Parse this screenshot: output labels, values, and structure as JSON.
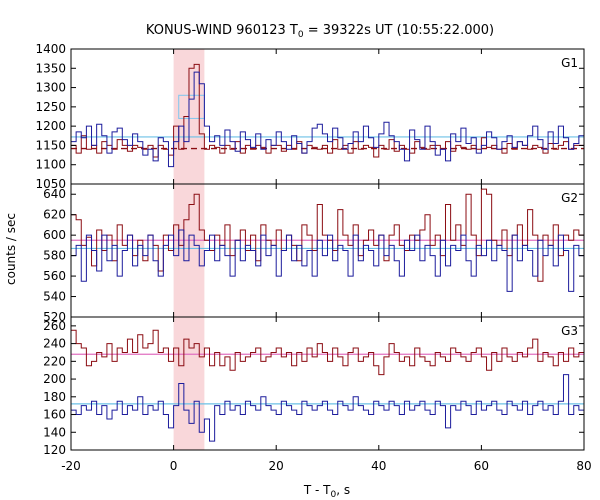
{
  "chart_data": {
    "type": "line",
    "title": {
      "prefix": "KONUS-WIND 960123 T",
      "sub": "0",
      "suffix": " = 39322s UT (10:55:22.000)"
    },
    "xlabel": {
      "prefix": "T - T",
      "sub": "0",
      "suffix": ", s"
    },
    "ylabel": "counts / sec",
    "xlim": [
      -20,
      80
    ],
    "xticks": [
      "-20",
      "0",
      "20",
      "40",
      "60",
      "80"
    ],
    "highlight": {
      "x0": 0,
      "x1": 6,
      "color": "#f9d7da"
    },
    "colors": {
      "red": "#8b0c12",
      "blue": "#1c1c9c",
      "cyan_fit": "#6cc0e6",
      "pink_fit": "#e070c0",
      "dash_fit": "#8b0c12"
    },
    "panels": [
      {
        "label": "G1",
        "ylim": [
          1050,
          1400
        ],
        "yticks": [
          "1400",
          "1350",
          "1300",
          "1250",
          "1200",
          "1150",
          "1100",
          "1050"
        ],
        "x_start": -20,
        "bin_width": 1,
        "series": [
          {
            "color": "red",
            "values": [
              1150,
              1130,
              1175,
              1140,
              1150,
              1130,
              1160,
              1150,
              1140,
              1165,
              1150,
              1135,
              1150,
              1145,
              1140,
              1150,
              1120,
              1150,
              1140,
              1125,
              1200,
              1140,
              1225,
              1350,
              1360,
              1180,
              1140,
              1150,
              1145,
              1130,
              1150,
              1140,
              1160,
              1130,
              1150,
              1140,
              1150,
              1145,
              1130,
              1150,
              1150,
              1135,
              1150,
              1140,
              1160,
              1130,
              1150,
              1145,
              1140,
              1150,
              1130,
              1165,
              1140,
              1150,
              1130,
              1160,
              1140,
              1150,
              1145,
              1120,
              1150,
              1140,
              1165,
              1135,
              1150,
              1140,
              1130,
              1160,
              1145,
              1140,
              1150,
              1150,
              1140,
              1160,
              1135,
              1150,
              1145,
              1140,
              1150,
              1140,
              1170,
              1145,
              1150,
              1140,
              1130,
              1155,
              1140,
              1160,
              1150,
              1140,
              1150,
              1145,
              1130,
              1155,
              1140,
              1150,
              1160,
              1140,
              1150,
              1150
            ]
          },
          {
            "color": "blue",
            "values": [
              1160,
              1185,
              1170,
              1200,
              1150,
              1205,
              1175,
              1130,
              1185,
              1195,
              1165,
              1150,
              1180,
              1160,
              1125,
              1140,
              1110,
              1170,
              1160,
              1095,
              1160,
              1200,
              1160,
              1270,
              1340,
              1310,
              1200,
              1160,
              1175,
              1150,
              1190,
              1160,
              1135,
              1185,
              1165,
              1145,
              1180,
              1140,
              1165,
              1150,
              1185,
              1160,
              1140,
              1175,
              1155,
              1130,
              1160,
              1195,
              1205,
              1180,
              1160,
              1195,
              1170,
              1140,
              1155,
              1185,
              1160,
              1200,
              1170,
              1145,
              1180,
              1210,
              1175,
              1160,
              1140,
              1110,
              1190,
              1165,
              1140,
              1200,
              1160,
              1125,
              1140,
              1110,
              1180,
              1160,
              1195,
              1155,
              1170,
              1130,
              1150,
              1185,
              1170,
              1140,
              1160,
              1175,
              1145,
              1160,
              1150,
              1175,
              1200,
              1165,
              1140,
              1185,
              1155,
              1200,
              1170,
              1140,
              1155,
              1175
            ]
          }
        ],
        "fits": [
          {
            "color": "cyan_fit",
            "y": 1172,
            "dashed": false
          },
          {
            "color": "dash_fit",
            "y": 1142,
            "dashed": true
          }
        ],
        "box": {
          "x0": 1,
          "x1": 6,
          "y0": 1220,
          "y1": 1280,
          "color": "#7fc6ee"
        }
      },
      {
        "label": "G2",
        "ylim": [
          520,
          650
        ],
        "yticks": [
          "640",
          "620",
          "600",
          "580",
          "560",
          "540",
          "520"
        ],
        "x_start": -20,
        "bin_width": 1,
        "series": [
          {
            "color": "red",
            "values": [
              620,
              615,
              590,
              598,
              570,
              605,
              585,
              600,
              575,
              610,
              590,
              600,
              580,
              595,
              575,
              600,
              590,
              565,
              600,
              585,
              610,
              590,
              615,
              630,
              640,
              605,
              595,
              585,
              600,
              590,
              610,
              580,
              595,
              605,
              585,
              600,
              575,
              610,
              595,
              590,
              605,
              585,
              600,
              590,
              575,
              610,
              600,
              585,
              630,
              600,
              595,
              585,
              625,
              600,
              590,
              610,
              580,
              595,
              605,
              590,
              600,
              575,
              600,
              610,
              590,
              585,
              600,
              595,
              605,
              620,
              590,
              600,
              580,
              630,
              595,
              610,
              590,
              640,
              600,
              580,
              645,
              640,
              595,
              590,
              605,
              580,
              600,
              610,
              590,
              625,
              600,
              555,
              600,
              590,
              610,
              580,
              600,
              595,
              605,
              600
            ]
          },
          {
            "color": "blue",
            "values": [
              580,
              590,
              555,
              600,
              585,
              565,
              600,
              575,
              590,
              560,
              585,
              600,
              570,
              590,
              580,
              600,
              575,
              560,
              590,
              600,
              580,
              605,
              575,
              600,
              590,
              570,
              585,
              600,
              575,
              590,
              580,
              560,
              595,
              575,
              590,
              585,
              570,
              600,
              580,
              590,
              560,
              585,
              600,
              575,
              590,
              570,
              585,
              560,
              595,
              580,
              600,
              575,
              590,
              585,
              560,
              600,
              575,
              590,
              585,
              570,
              600,
              580,
              590,
              575,
              560,
              595,
              585,
              600,
              575,
              590,
              580,
              560,
              595,
              570,
              590,
              585,
              600,
              575,
              560,
              590,
              580,
              595,
              575,
              590,
              585,
              545,
              600,
              575,
              590,
              585,
              560,
              595,
              580,
              590,
              570,
              600,
              585,
              545,
              590,
              580
            ]
          }
        ],
        "fits": [
          {
            "color": "cyan_fit",
            "y": 587,
            "dashed": false
          },
          {
            "color": "pink_fit",
            "y": 595,
            "dashed": false
          }
        ]
      },
      {
        "label": "G3",
        "ylim": [
          120,
          270
        ],
        "yticks": [
          "260",
          "240",
          "220",
          "200",
          "180",
          "160",
          "140",
          "120"
        ],
        "x_start": -20,
        "bin_width": 1,
        "series": [
          {
            "color": "red",
            "values": [
              255,
              240,
              235,
              215,
              220,
              230,
              225,
              240,
              220,
              235,
              230,
              245,
              230,
              250,
              235,
              240,
              255,
              230,
              235,
              220,
              235,
              215,
              245,
              235,
              240,
              225,
              235,
              215,
              230,
              215,
              225,
              210,
              230,
              220,
              225,
              230,
              235,
              220,
              225,
              230,
              235,
              225,
              230,
              215,
              230,
              220,
              235,
              225,
              240,
              230,
              220,
              235,
              225,
              215,
              230,
              235,
              220,
              225,
              230,
              215,
              205,
              225,
              240,
              230,
              220,
              225,
              215,
              235,
              225,
              220,
              215,
              230,
              225,
              220,
              235,
              230,
              225,
              220,
              230,
              235,
              225,
              210,
              230,
              220,
              235,
              225,
              220,
              230,
              225,
              235,
              245,
              220,
              230,
              225,
              215,
              230,
              220,
              235,
              225,
              230
            ]
          },
          {
            "color": "blue",
            "values": [
              165,
              160,
              170,
              165,
              175,
              160,
              170,
              155,
              165,
              175,
              160,
              170,
              165,
              180,
              160,
              170,
              165,
              175,
              160,
              145,
              170,
              195,
              165,
              150,
              175,
              140,
              155,
              130,
              170,
              160,
              175,
              165,
              170,
              160,
              175,
              170,
              165,
              180,
              170,
              165,
              160,
              175,
              170,
              165,
              160,
              175,
              170,
              165,
              170,
              175,
              165,
              160,
              175,
              170,
              165,
              180,
              170,
              165,
              160,
              175,
              170,
              165,
              175,
              170,
              160,
              175,
              165,
              170,
              175,
              165,
              160,
              175,
              170,
              145,
              170,
              165,
              175,
              170,
              160,
              175,
              165,
              170,
              175,
              165,
              160,
              175,
              170,
              165,
              175,
              160,
              170,
              175,
              165,
              170,
              160,
              175,
              205,
              160,
              170,
              165
            ]
          }
        ],
        "fits": [
          {
            "color": "cyan_fit",
            "y": 172,
            "dashed": false
          },
          {
            "color": "pink_fit",
            "y": 228,
            "dashed": false
          }
        ]
      }
    ]
  }
}
